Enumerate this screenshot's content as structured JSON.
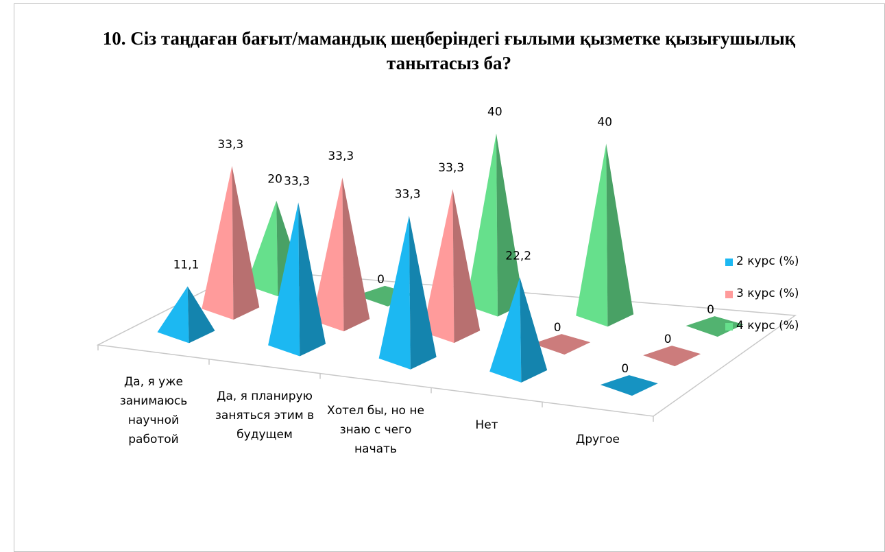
{
  "chart_data": {
    "type": "pyramid3d",
    "title": "10. Сіз таңдаған бағыт/мамандық шеңберіндегі ғылыми қызметке қызығушылық танытасыз ба?",
    "categories": [
      "Да, я уже занимаюсь научной работой",
      "Да, я планирую заняться этим в будущем",
      "Хотел бы, но не знаю с чего начать",
      "Нет",
      "Другое"
    ],
    "series": [
      {
        "name": "2 курс (%)",
        "color": "#1cb8f2",
        "values": [
          11.1,
          33.3,
          33.3,
          22.2,
          0
        ],
        "value_labels": [
          "11,1",
          "33,3",
          "33,3",
          "22,2",
          "0"
        ]
      },
      {
        "name": "3 курс (%)",
        "color": "#ff9b9b",
        "values": [
          33.3,
          33.3,
          33.3,
          0,
          0
        ],
        "value_labels": [
          "33,3",
          "33,3",
          "33,3",
          "0",
          "0"
        ]
      },
      {
        "name": "4 курс (%)",
        "color": "#66e08c",
        "values": [
          20,
          0,
          40,
          40,
          0
        ]
      }
    ],
    "ylim": [
      0,
      40
    ]
  }
}
